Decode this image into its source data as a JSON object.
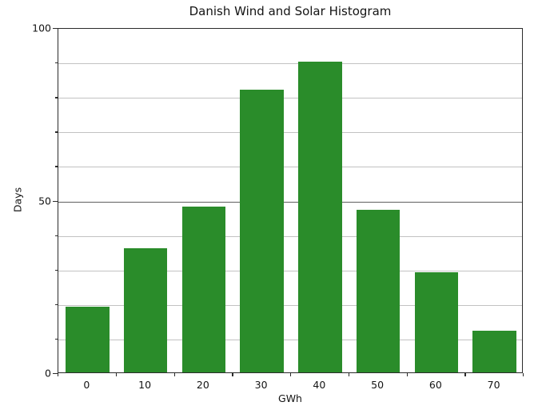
{
  "chart_data": {
    "type": "bar",
    "title": "Danish Wind and Solar Histogram",
    "xlabel": "GWh",
    "ylabel": "Days",
    "categories": [
      0,
      10,
      20,
      30,
      40,
      50,
      60,
      70
    ],
    "values": [
      19,
      36,
      48,
      82,
      90,
      47,
      29,
      12
    ],
    "xlim": [
      -5,
      75
    ],
    "ylim": [
      0,
      100
    ],
    "yticks_major": [
      0,
      50,
      100
    ],
    "ytick_minor_step": 10,
    "bin_width": 10,
    "bar_fraction": 0.75,
    "grid": "horizontal-minor-and-major",
    "legend": "none",
    "colors": {
      "bar": "#2a8c2a",
      "grid_minor": "#c2c2c2",
      "grid_major": "#5f5f5f",
      "spine": "#2b2b2b",
      "text": "#141414",
      "background": "#ffffff"
    }
  }
}
